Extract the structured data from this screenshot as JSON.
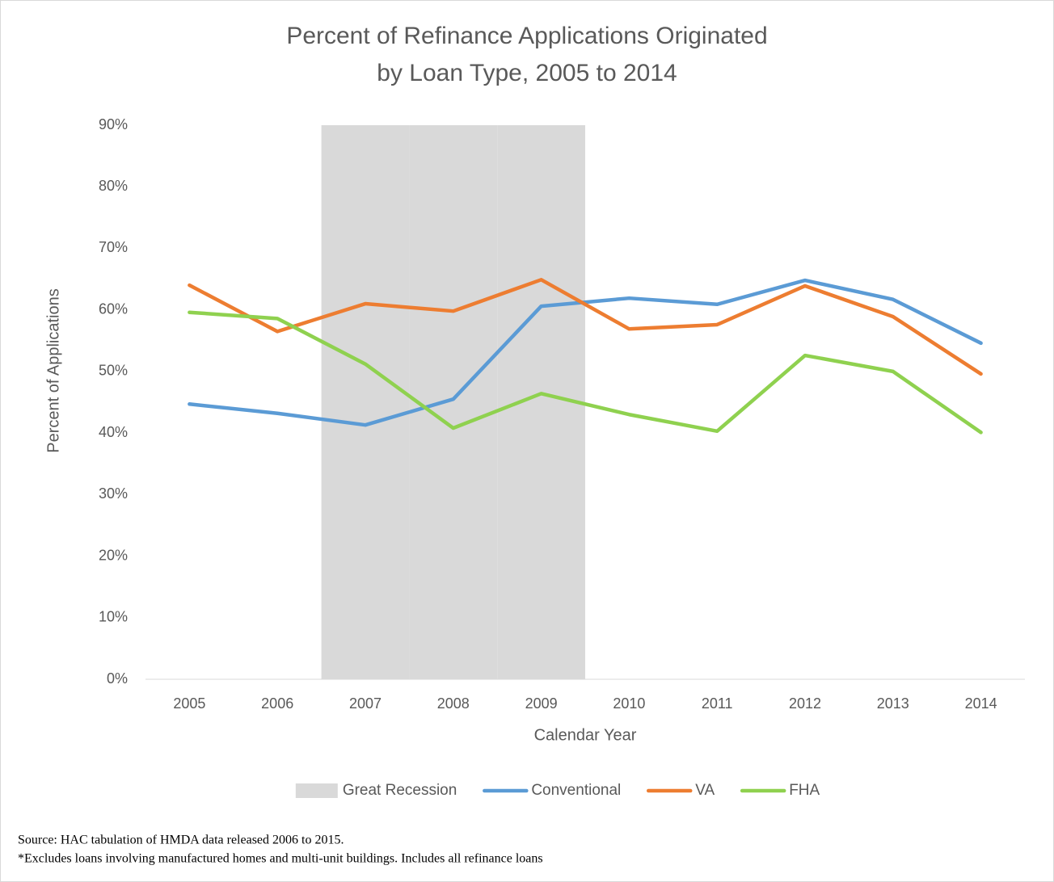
{
  "chart_data": {
    "type": "line",
    "title": [
      "Percent of Refinance Applications Originated",
      "by Loan Type, 2005 to 2014"
    ],
    "x_label": "Calendar Year",
    "y_label": "Percent of Applications",
    "categories": [
      "2005",
      "2006",
      "2007",
      "2008",
      "2009",
      "2010",
      "2011",
      "2012",
      "2013",
      "2014"
    ],
    "series": [
      {
        "name": "Great Recession",
        "type": "bar",
        "color": "#d9d9d9",
        "values": [
          null,
          null,
          90,
          90,
          90,
          null,
          null,
          null,
          null,
          null
        ]
      },
      {
        "name": "Conventional",
        "color": "#5b9bd5",
        "values": [
          44.7,
          43.2,
          41.3,
          45.5,
          60.6,
          61.9,
          60.9,
          64.8,
          61.7,
          54.6
        ]
      },
      {
        "name": "VA",
        "color": "#ed7d31",
        "values": [
          64.0,
          56.5,
          61.0,
          59.8,
          64.9,
          56.9,
          57.6,
          63.9,
          58.9,
          49.6
        ]
      },
      {
        "name": "FHA",
        "color": "#8fd14f",
        "values": [
          59.6,
          58.6,
          51.2,
          40.8,
          46.4,
          43.0,
          40.3,
          52.6,
          50.0,
          40.1
        ]
      }
    ],
    "ylim": [
      0,
      90
    ],
    "yticks": [
      {
        "value": 0,
        "label": "0%"
      },
      {
        "value": 10,
        "label": "10%"
      },
      {
        "value": 20,
        "label": "20%"
      },
      {
        "value": 30,
        "label": "30%"
      },
      {
        "value": 40,
        "label": "40%"
      },
      {
        "value": 50,
        "label": "50%"
      },
      {
        "value": 60,
        "label": "60%"
      },
      {
        "value": 70,
        "label": "70%"
      },
      {
        "value": 80,
        "label": "80%"
      },
      {
        "value": 90,
        "label": "90%"
      }
    ],
    "legend": "bottom",
    "notes": [
      "Source: HAC tabulation of HMDA data released 2006 to 2015.",
      "*Excludes loans involving manufactured homes and multi-unit buildings. Includes  all refinance loans"
    ]
  }
}
